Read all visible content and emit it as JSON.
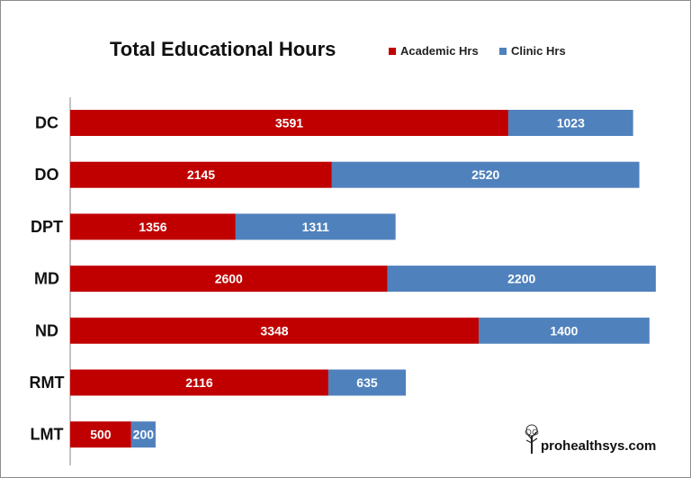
{
  "chart_data": {
    "type": "bar",
    "orientation": "horizontal",
    "stacked": true,
    "title": "Total Educational Hours",
    "categories": [
      "DC",
      "DO",
      "DPT",
      "MD",
      "ND",
      "RMT",
      "LMT"
    ],
    "series": [
      {
        "name": "Academic Hrs",
        "color": "#c00000",
        "values": [
          3591,
          2145,
          1356,
          2600,
          3348,
          2116,
          500
        ]
      },
      {
        "name": "Clinic Hrs",
        "color": "#4f81bd",
        "values": [
          1023,
          2520,
          1311,
          2200,
          1400,
          635,
          200
        ]
      }
    ],
    "legend_position": "top-right",
    "grid": false,
    "xlim": [
      0,
      4800
    ]
  },
  "branding": {
    "site": "prohealthsys.com",
    "logo_icon": "tree-icon"
  }
}
